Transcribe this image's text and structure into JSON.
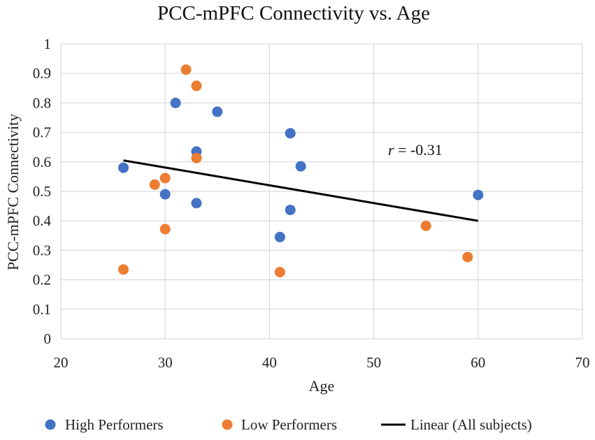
{
  "chart_data": {
    "type": "scatter",
    "title": "PCC-mPFC Connectivity vs. Age",
    "xlabel": "Age",
    "ylabel": "PCC-mPFC Connectivity",
    "xlim": [
      20,
      70
    ],
    "ylim": [
      0,
      1
    ],
    "x_ticks": [
      "20",
      "30",
      "40",
      "50",
      "60",
      "70"
    ],
    "y_ticks": [
      "0",
      "0.1",
      "0.2",
      "0.3",
      "0.4",
      "0.5",
      "0.6",
      "0.7",
      "0.8",
      "0.9",
      "1"
    ],
    "grid": true,
    "legend_position": "bottom",
    "series": [
      {
        "name": "High Performers",
        "color": "#4472C4",
        "points": [
          {
            "x": 26,
            "y": 0.58
          },
          {
            "x": 30,
            "y": 0.49
          },
          {
            "x": 31,
            "y": 0.8
          },
          {
            "x": 33,
            "y": 0.635
          },
          {
            "x": 33,
            "y": 0.46
          },
          {
            "x": 35,
            "y": 0.77
          },
          {
            "x": 41,
            "y": 0.345
          },
          {
            "x": 42,
            "y": 0.697
          },
          {
            "x": 42,
            "y": 0.437
          },
          {
            "x": 43,
            "y": 0.585
          },
          {
            "x": 60,
            "y": 0.488
          }
        ]
      },
      {
        "name": "Low Performers",
        "color": "#ED7D31",
        "points": [
          {
            "x": 26,
            "y": 0.235
          },
          {
            "x": 29,
            "y": 0.523
          },
          {
            "x": 30,
            "y": 0.545
          },
          {
            "x": 30,
            "y": 0.372
          },
          {
            "x": 32,
            "y": 0.913
          },
          {
            "x": 33,
            "y": 0.858
          },
          {
            "x": 33,
            "y": 0.613
          },
          {
            "x": 41,
            "y": 0.226
          },
          {
            "x": 55,
            "y": 0.383
          },
          {
            "x": 59,
            "y": 0.277
          }
        ]
      }
    ],
    "trendline": {
      "name": "Linear (All subjects)",
      "color": "#000000",
      "x": [
        26,
        60
      ],
      "y": [
        0.605,
        0.4
      ]
    },
    "annotation": {
      "italic": "r",
      "text": " = -0.31"
    }
  }
}
